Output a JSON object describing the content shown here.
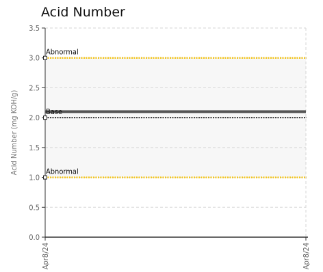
{
  "chart_data": {
    "type": "line",
    "title": "Acid Number",
    "ylabel": "Acid Number (mg KOH/g)",
    "xlabel": "",
    "ylim": [
      0,
      3.5
    ],
    "yticks": [
      "0.0",
      "0.5",
      "1.0",
      "1.5",
      "2.0",
      "2.5",
      "3.0",
      "3.5"
    ],
    "x": [
      "Apr8/24",
      "Apr8/24"
    ],
    "grid": true,
    "legend": "none",
    "bands": [
      {
        "from": 1.0,
        "to": 2.0,
        "color": "#f7f7f7"
      },
      {
        "from": 2.0,
        "to": 3.0,
        "color": "#f7f7f7"
      }
    ],
    "reference_lines": [
      {
        "label": "Abnormal",
        "value": 3.0,
        "color": "#f5c518",
        "style": "dotted"
      },
      {
        "label": "Base",
        "value": 2.0,
        "color": "#333333",
        "style": "dotted"
      },
      {
        "label": "Abnormal",
        "value": 1.0,
        "color": "#f5c518",
        "style": "dotted"
      }
    ],
    "series": [
      {
        "values": [
          2.1,
          2.1
        ],
        "color": "#555555"
      }
    ]
  }
}
